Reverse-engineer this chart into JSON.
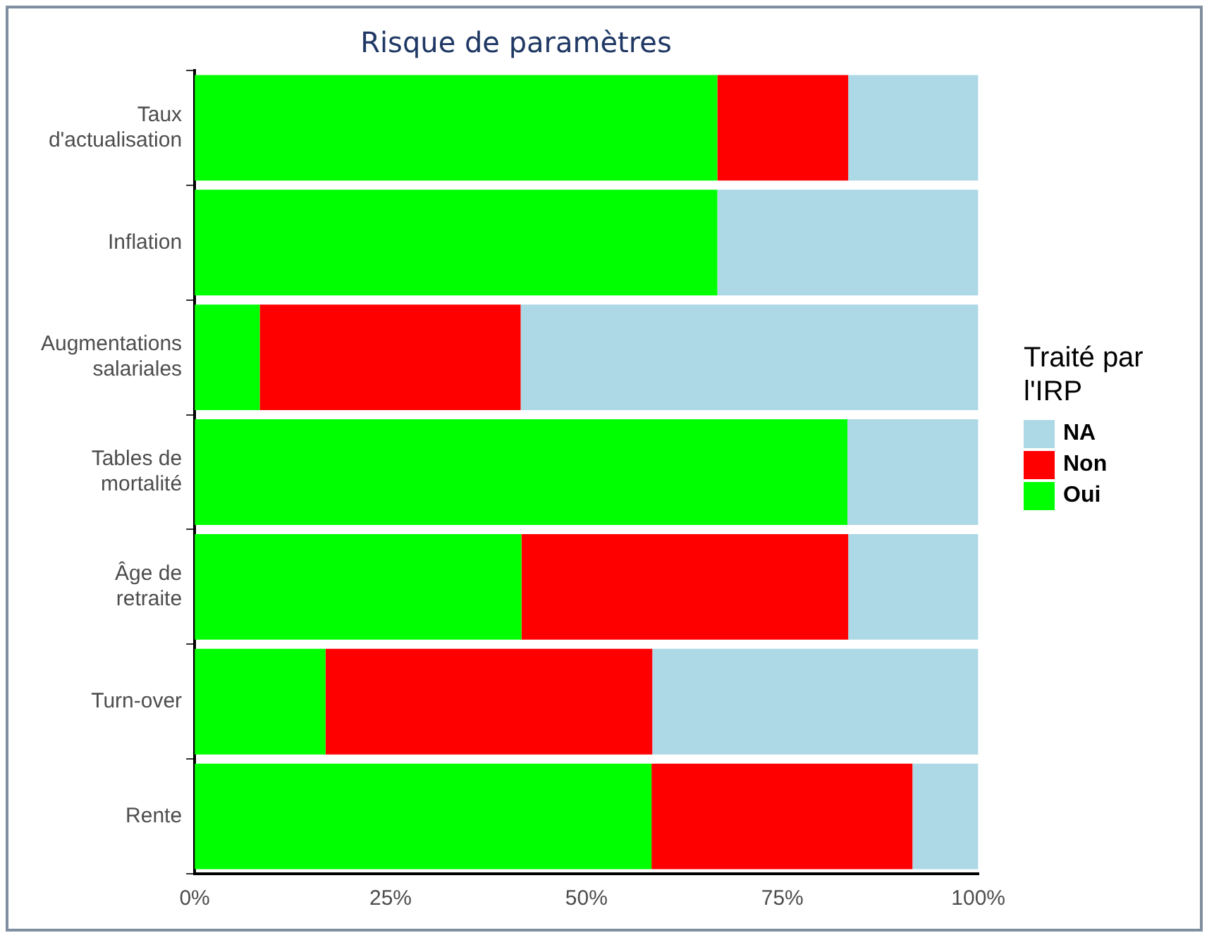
{
  "chart_data": {
    "type": "bar",
    "orientation": "horizontal",
    "stacked": true,
    "title": "Risque de paramètres",
    "legend_title": "Traité par l'IRP",
    "legend": "right",
    "grid": false,
    "categories": [
      "Taux d'actualisation",
      "Inflation",
      "Augmentations salariales",
      "Tables de mortalité",
      "Âge de retraite",
      "Turn-over",
      "Rente"
    ],
    "series": [
      {
        "name": "Oui",
        "color": "#00ff00",
        "values": [
          66.7,
          66.7,
          8.3,
          83.3,
          41.7,
          16.7,
          58.3
        ]
      },
      {
        "name": "Non",
        "color": "#ff0000",
        "values": [
          16.7,
          0,
          33.3,
          0,
          41.7,
          41.7,
          33.3
        ]
      },
      {
        "name": "NA",
        "color": "#add8e6",
        "values": [
          16.6,
          33.3,
          58.4,
          16.7,
          16.6,
          41.6,
          8.4
        ]
      }
    ],
    "xlim": [
      0,
      100
    ],
    "xticks": [
      {
        "value": 0,
        "label": "0%"
      },
      {
        "value": 25,
        "label": "25%"
      },
      {
        "value": 50,
        "label": "50%"
      },
      {
        "value": 75,
        "label": "75%"
      },
      {
        "value": 100,
        "label": "100%"
      }
    ]
  }
}
